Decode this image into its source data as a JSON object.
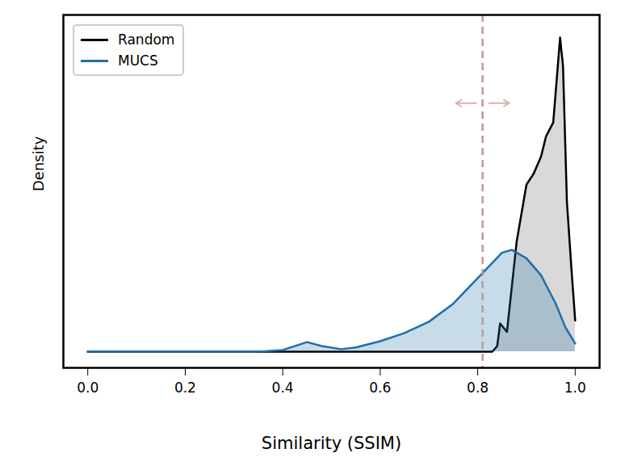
{
  "chart_data": {
    "type": "area",
    "xlabel": "Similarity (SSIM)",
    "ylabel": "Density",
    "series": [
      {
        "name": "Random",
        "color": "#000000",
        "x": [
          0,
          0.8,
          0.83,
          0.84,
          0.846,
          0.86,
          0.88,
          0.9,
          0.915,
          0.93,
          0.94,
          0.955,
          0.962,
          0.969,
          0.975,
          0.983,
          0.992,
          1.0
        ],
        "values": [
          0,
          0,
          0,
          0.2,
          1.0,
          0.7,
          3.9,
          5.9,
          6.3,
          6.9,
          7.6,
          8.1,
          9.6,
          11.1,
          10.1,
          5.3,
          3.0,
          1.1
        ]
      },
      {
        "name": "MUCS",
        "color": "#1f6fa8",
        "x": [
          0,
          0.35,
          0.4,
          0.45,
          0.48,
          0.52,
          0.55,
          0.6,
          0.65,
          0.7,
          0.75,
          0.8,
          0.85,
          0.87,
          0.9,
          0.93,
          0.96,
          0.98,
          1.0
        ],
        "values": [
          0,
          0,
          0.06,
          0.34,
          0.2,
          0.09,
          0.15,
          0.37,
          0.66,
          1.06,
          1.7,
          2.6,
          3.5,
          3.6,
          3.3,
          2.7,
          1.7,
          0.86,
          0.29
        ]
      }
    ],
    "threshold": 0.81,
    "xlim": [
      -0.05,
      1.05
    ],
    "xticks": [
      {
        "value": 0,
        "label": "0.0"
      },
      0.2,
      0.4,
      0.6,
      0.8,
      {
        "value": 1,
        "label": "1.0"
      }
    ],
    "ylim": [
      -0.57,
      11.9
    ],
    "tick_labels": "x",
    "legend": "upper left"
  }
}
